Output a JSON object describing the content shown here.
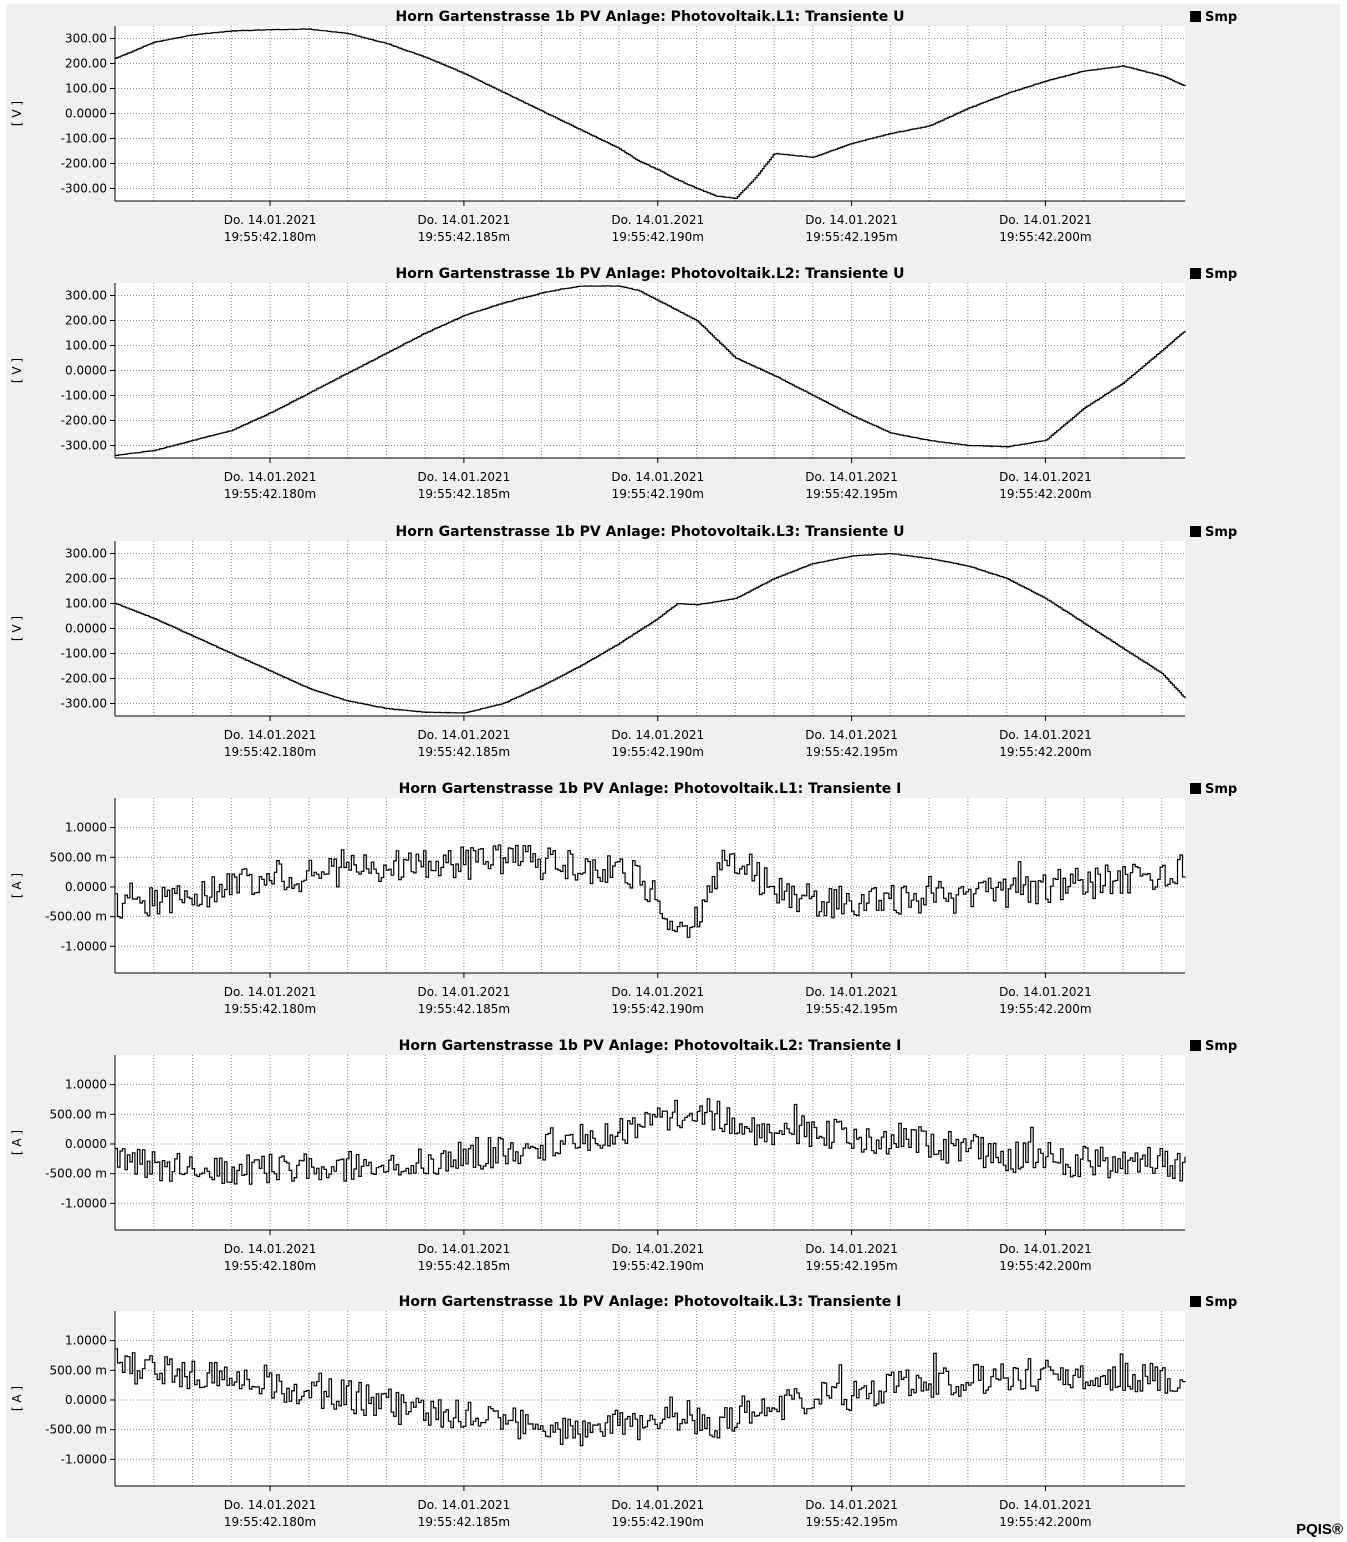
{
  "app": {
    "brand": "PQIS®"
  },
  "colors": {
    "trace": "#000000",
    "grid": "#8c8c8c",
    "panel_bg": "#ffffff",
    "frame_bg": "#f0f0f0"
  },
  "chart_data": [
    {
      "type": "line",
      "title": "Horn Gartenstrasse 1b PV Anlage:   Photovoltaik.L1:   Transiente U",
      "ylabel": "[ V ]",
      "legend": "Smp",
      "legend_position": "top-right",
      "grid": true,
      "ylim": [
        -350,
        350
      ],
      "yticks": [
        300,
        200,
        100,
        0,
        -100,
        -200,
        -300
      ],
      "ytick_labels": [
        "300.00",
        "200.00",
        "100.00",
        "0.0000",
        "-100.00",
        "-200.00",
        "-300.00"
      ],
      "xlim": [
        42.176,
        42.2036
      ],
      "xticks": [
        42.18,
        42.185,
        42.19,
        42.195,
        42.2
      ],
      "xtick_labels": [
        [
          "Do. 14.01.2021",
          "19:55:42.180m"
        ],
        [
          "Do. 14.01.2021",
          "19:55:42.185m"
        ],
        [
          "Do. 14.01.2021",
          "19:55:42.190m"
        ],
        [
          "Do. 14.01.2021",
          "19:55:42.195m"
        ],
        [
          "Do. 14.01.2021",
          "19:55:42.200m"
        ]
      ],
      "series": [
        {
          "name": "Smp",
          "step": true,
          "x": [
            42.176,
            42.177,
            42.178,
            42.179,
            42.18,
            42.181,
            42.182,
            42.183,
            42.184,
            42.185,
            42.186,
            42.187,
            42.188,
            42.189,
            42.1895,
            42.19,
            42.1905,
            42.191,
            42.1915,
            42.192,
            42.1925,
            42.193,
            42.194,
            42.195,
            42.196,
            42.197,
            42.198,
            42.199,
            42.2,
            42.201,
            42.202,
            42.203,
            42.2036
          ],
          "y": [
            220,
            285,
            315,
            330,
            335,
            338,
            320,
            280,
            225,
            160,
            85,
            10,
            -65,
            -140,
            -190,
            -225,
            -265,
            -300,
            -330,
            -340,
            -260,
            -160,
            -175,
            -120,
            -80,
            -50,
            20,
            80,
            130,
            170,
            190,
            150,
            110
          ]
        }
      ]
    },
    {
      "type": "line",
      "title": "Horn Gartenstrasse 1b PV Anlage:   Photovoltaik.L2:   Transiente U",
      "ylabel": "[ V ]",
      "legend": "Smp",
      "legend_position": "top-right",
      "grid": true,
      "ylim": [
        -350,
        350
      ],
      "yticks": [
        300,
        200,
        100,
        0,
        -100,
        -200,
        -300
      ],
      "ytick_labels": [
        "300.00",
        "200.00",
        "100.00",
        "0.0000",
        "-100.00",
        "-200.00",
        "-300.00"
      ],
      "xlim": [
        42.176,
        42.2036
      ],
      "xticks": [
        42.18,
        42.185,
        42.19,
        42.195,
        42.2
      ],
      "xtick_labels": [
        [
          "Do. 14.01.2021",
          "19:55:42.180m"
        ],
        [
          "Do. 14.01.2021",
          "19:55:42.185m"
        ],
        [
          "Do. 14.01.2021",
          "19:55:42.190m"
        ],
        [
          "Do. 14.01.2021",
          "19:55:42.195m"
        ],
        [
          "Do. 14.01.2021",
          "19:55:42.200m"
        ]
      ],
      "series": [
        {
          "name": "Smp",
          "step": true,
          "x": [
            42.176,
            42.177,
            42.178,
            42.179,
            42.18,
            42.181,
            42.182,
            42.183,
            42.184,
            42.185,
            42.186,
            42.187,
            42.1875,
            42.188,
            42.189,
            42.1895,
            42.19,
            42.1905,
            42.191,
            42.192,
            42.193,
            42.194,
            42.195,
            42.196,
            42.197,
            42.198,
            42.199,
            42.2,
            42.201,
            42.202,
            42.203,
            42.2036
          ],
          "y": [
            -340,
            -320,
            -280,
            -240,
            -170,
            -90,
            -10,
            70,
            150,
            220,
            270,
            310,
            325,
            338,
            338,
            320,
            280,
            240,
            200,
            50,
            -20,
            -100,
            -180,
            -250,
            -280,
            -300,
            -305,
            -280,
            -150,
            -50,
            80,
            160
          ]
        }
      ]
    },
    {
      "type": "line",
      "title": "Horn Gartenstrasse 1b PV Anlage:   Photovoltaik.L3:   Transiente U",
      "ylabel": "[ V ]",
      "legend": "Smp",
      "legend_position": "top-right",
      "grid": true,
      "ylim": [
        -350,
        350
      ],
      "yticks": [
        300,
        200,
        100,
        0,
        -100,
        -200,
        -300
      ],
      "ytick_labels": [
        "300.00",
        "200.00",
        "100.00",
        "0.0000",
        "-100.00",
        "-200.00",
        "-300.00"
      ],
      "xlim": [
        42.176,
        42.2036
      ],
      "xticks": [
        42.18,
        42.185,
        42.19,
        42.195,
        42.2
      ],
      "xtick_labels": [
        [
          "Do. 14.01.2021",
          "19:55:42.180m"
        ],
        [
          "Do. 14.01.2021",
          "19:55:42.185m"
        ],
        [
          "Do. 14.01.2021",
          "19:55:42.190m"
        ],
        [
          "Do. 14.01.2021",
          "19:55:42.195m"
        ],
        [
          "Do. 14.01.2021",
          "19:55:42.200m"
        ]
      ],
      "series": [
        {
          "name": "Smp",
          "step": true,
          "x": [
            42.176,
            42.177,
            42.178,
            42.179,
            42.18,
            42.181,
            42.182,
            42.183,
            42.184,
            42.185,
            42.186,
            42.187,
            42.188,
            42.189,
            42.1895,
            42.19,
            42.1905,
            42.191,
            42.192,
            42.193,
            42.194,
            42.195,
            42.196,
            42.197,
            42.198,
            42.199,
            42.2,
            42.201,
            42.202,
            42.203,
            42.2036
          ],
          "y": [
            100,
            40,
            -30,
            -100,
            -170,
            -240,
            -290,
            -320,
            -335,
            -338,
            -300,
            -230,
            -150,
            -60,
            -10,
            40,
            100,
            95,
            120,
            200,
            260,
            290,
            300,
            280,
            250,
            200,
            120,
            20,
            -80,
            -180,
            -280
          ]
        }
      ]
    },
    {
      "type": "line",
      "title": "Horn Gartenstrasse 1b PV Anlage:   Photovoltaik.L1:   Transiente I",
      "ylabel": "[ A ]",
      "legend": "Smp",
      "legend_position": "top-right",
      "grid": true,
      "ylim": [
        -1.45,
        1.5
      ],
      "yticks": [
        1.0,
        0.5,
        0.0,
        -0.5,
        -1.0
      ],
      "ytick_labels": [
        "1.0000",
        "500.00 m",
        "0.0000",
        "-500.00 m",
        "-1.0000"
      ],
      "xlim": [
        42.176,
        42.2036
      ],
      "xticks": [
        42.18,
        42.185,
        42.19,
        42.195,
        42.2
      ],
      "xtick_labels": [
        [
          "Do. 14.01.2021",
          "19:55:42.180m"
        ],
        [
          "Do. 14.01.2021",
          "19:55:42.185m"
        ],
        [
          "Do. 14.01.2021",
          "19:55:42.190m"
        ],
        [
          "Do. 14.01.2021",
          "19:55:42.195m"
        ],
        [
          "Do. 14.01.2021",
          "19:55:42.200m"
        ]
      ],
      "series": [
        {
          "name": "Smp",
          "step": true,
          "x": [
            42.176,
            42.177,
            42.178,
            42.179,
            42.18,
            42.181,
            42.182,
            42.183,
            42.184,
            42.185,
            42.186,
            42.187,
            42.188,
            42.189,
            42.1895,
            42.19,
            42.1905,
            42.191,
            42.1915,
            42.192,
            42.1925,
            42.193,
            42.194,
            42.195,
            42.196,
            42.197,
            42.198,
            42.199,
            42.2,
            42.201,
            42.202,
            42.203,
            42.2036
          ],
          "y": [
            -0.3,
            -0.25,
            -0.15,
            0.1,
            0.15,
            0.2,
            0.3,
            0.35,
            0.35,
            0.4,
            0.45,
            0.4,
            0.35,
            0.3,
            0.2,
            -0.3,
            -0.7,
            -0.5,
            0.3,
            0.5,
            0.2,
            -0.1,
            -0.2,
            -0.3,
            -0.25,
            -0.2,
            -0.15,
            -0.1,
            0.0,
            0.05,
            0.1,
            0.2,
            0.3
          ]
        }
      ]
    },
    {
      "type": "line",
      "title": "Horn Gartenstrasse 1b PV Anlage:   Photovoltaik.L2:   Transiente I",
      "ylabel": "[ A ]",
      "legend": "Smp",
      "legend_position": "top-right",
      "grid": true,
      "ylim": [
        -1.45,
        1.5
      ],
      "yticks": [
        1.0,
        0.5,
        0.0,
        -0.5,
        -1.0
      ],
      "ytick_labels": [
        "1.0000",
        "500.00 m",
        "0.0000",
        "-500.00 m",
        "-1.0000"
      ],
      "xlim": [
        42.176,
        42.2036
      ],
      "xticks": [
        42.18,
        42.185,
        42.19,
        42.195,
        42.2
      ],
      "xtick_labels": [
        [
          "Do. 14.01.2021",
          "19:55:42.180m"
        ],
        [
          "Do. 14.01.2021",
          "19:55:42.185m"
        ],
        [
          "Do. 14.01.2021",
          "19:55:42.190m"
        ],
        [
          "Do. 14.01.2021",
          "19:55:42.195m"
        ],
        [
          "Do. 14.01.2021",
          "19:55:42.200m"
        ]
      ],
      "series": [
        {
          "name": "Smp",
          "step": true,
          "x": [
            42.176,
            42.177,
            42.178,
            42.179,
            42.18,
            42.181,
            42.182,
            42.183,
            42.184,
            42.185,
            42.186,
            42.187,
            42.188,
            42.189,
            42.1895,
            42.19,
            42.1905,
            42.191,
            42.1915,
            42.192,
            42.193,
            42.194,
            42.195,
            42.196,
            42.197,
            42.198,
            42.199,
            42.2,
            42.201,
            42.202,
            42.203,
            42.2036
          ],
          "y": [
            -0.3,
            -0.35,
            -0.35,
            -0.4,
            -0.4,
            -0.45,
            -0.4,
            -0.35,
            -0.3,
            -0.2,
            -0.1,
            0.0,
            0.1,
            0.2,
            0.3,
            0.4,
            0.5,
            0.6,
            0.5,
            0.3,
            0.2,
            0.2,
            0.15,
            0.1,
            0.0,
            -0.1,
            -0.2,
            -0.25,
            -0.3,
            -0.3,
            -0.35,
            -0.35
          ]
        }
      ]
    },
    {
      "type": "line",
      "title": "Horn Gartenstrasse 1b PV Anlage:   Photovoltaik.L3:   Transiente I",
      "ylabel": "[ A ]",
      "legend": "Smp",
      "legend_position": "top-right",
      "grid": true,
      "ylim": [
        -1.45,
        1.5
      ],
      "yticks": [
        1.0,
        0.5,
        0.0,
        -0.5,
        -1.0
      ],
      "ytick_labels": [
        "1.0000",
        "500.00 m",
        "0.0000",
        "-500.00 m",
        "-1.0000"
      ],
      "xlim": [
        42.176,
        42.2036
      ],
      "xticks": [
        42.18,
        42.185,
        42.19,
        42.195,
        42.2
      ],
      "xtick_labels": [
        [
          "Do. 14.01.2021",
          "19:55:42.180m"
        ],
        [
          "Do. 14.01.2021",
          "19:55:42.185m"
        ],
        [
          "Do. 14.01.2021",
          "19:55:42.190m"
        ],
        [
          "Do. 14.01.2021",
          "19:55:42.195m"
        ],
        [
          "Do. 14.01.2021",
          "19:55:42.200m"
        ]
      ],
      "series": [
        {
          "name": "Smp",
          "step": true,
          "x": [
            42.176,
            42.177,
            42.178,
            42.179,
            42.18,
            42.181,
            42.182,
            42.183,
            42.184,
            42.185,
            42.186,
            42.187,
            42.188,
            42.189,
            42.1895,
            42.19,
            42.191,
            42.1915,
            42.192,
            42.193,
            42.194,
            42.195,
            42.196,
            42.197,
            42.198,
            42.199,
            42.2,
            42.201,
            42.202,
            42.203,
            42.2036
          ],
          "y": [
            0.6,
            0.5,
            0.45,
            0.35,
            0.25,
            0.15,
            0.05,
            -0.05,
            -0.15,
            -0.3,
            -0.4,
            -0.45,
            -0.5,
            -0.45,
            -0.4,
            -0.2,
            -0.3,
            -0.55,
            -0.2,
            -0.1,
            0.0,
            0.1,
            0.2,
            0.3,
            0.35,
            0.4,
            0.45,
            0.45,
            0.4,
            0.35,
            0.3
          ]
        }
      ]
    }
  ]
}
